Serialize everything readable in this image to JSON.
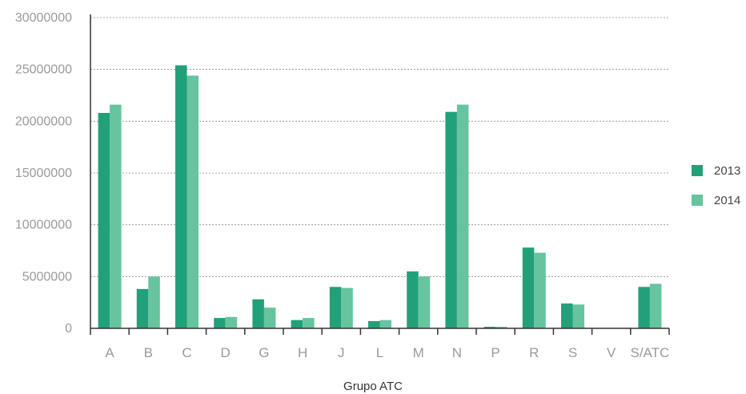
{
  "chart_data": {
    "type": "bar",
    "categories": [
      "A",
      "B",
      "C",
      "D",
      "G",
      "H",
      "J",
      "L",
      "M",
      "N",
      "P",
      "R",
      "S",
      "V",
      "S/ATC"
    ],
    "series": [
      {
        "name": "2013",
        "color": "#22a07a",
        "values": [
          20800000,
          3800000,
          25400000,
          1000000,
          2800000,
          800000,
          4000000,
          700000,
          5500000,
          20900000,
          150000,
          7800000,
          2400000,
          0,
          4000000
        ]
      },
      {
        "name": "2014",
        "color": "#66c49e",
        "values": [
          21600000,
          5000000,
          24400000,
          1100000,
          2000000,
          1000000,
          3900000,
          800000,
          5000000,
          21600000,
          150000,
          7300000,
          2300000,
          0,
          4300000
        ]
      }
    ],
    "xlabel": "Grupo ATC",
    "ylabel": "",
    "ylim": [
      0,
      30000000
    ],
    "yticks": [
      "0",
      "5000000",
      "10000000",
      "15000000",
      "20000000",
      "25000000",
      "30000000"
    ],
    "grid": true,
    "legend": "right"
  }
}
